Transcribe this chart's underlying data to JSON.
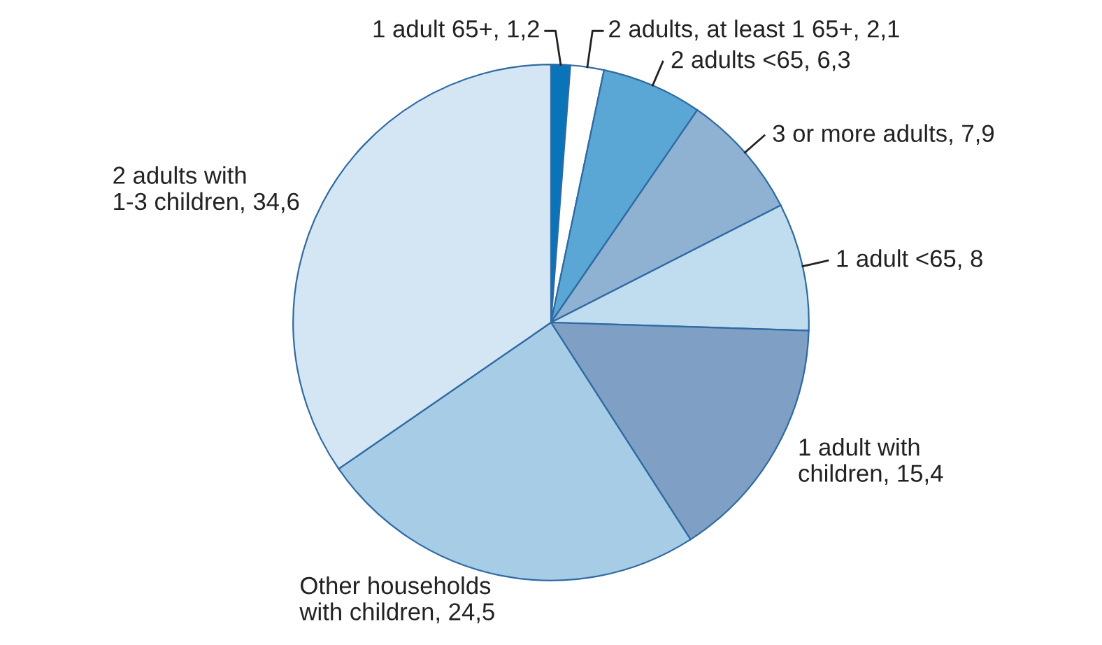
{
  "chart_data": {
    "type": "pie",
    "categories": [
      "1 adult 65+, 1,2",
      "2 adults, at least 1 65+, 2,1",
      "2 adults <65, 6,3",
      "3 or more adults, 7,9",
      "1 adult <65, 8",
      "1 adult with\nchildren, 15,4",
      "Other households\nwith children, 24,5",
      "2 adults with\n1-3 children, 34,6"
    ],
    "values": [
      1.2,
      2.1,
      6.3,
      7.9,
      8,
      15.4,
      24.5,
      34.6
    ],
    "colors": [
      "#0a74b9",
      "#ffffff",
      "#5aa7d5",
      "#8fb1d2",
      "#c0dcef",
      "#7f9fc4",
      "#a6cce6",
      "#d4e6f3"
    ],
    "legend": false
  }
}
